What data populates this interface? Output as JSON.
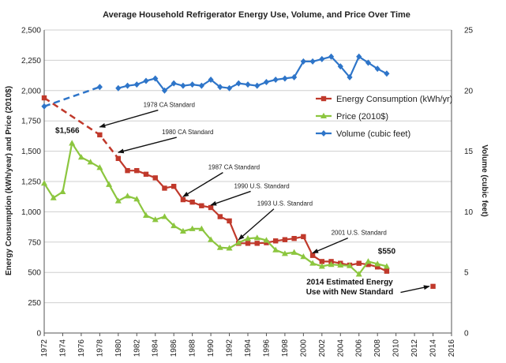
{
  "chart_data": {
    "type": "line",
    "title": "Average Household Refrigerator Energy Use, Volume, and Price Over Time",
    "ylabel": "Energy Consumption (kWh/year) and Price (2010$)",
    "y2label": "Volume (cubic feet)",
    "xlabel": "",
    "xlim": [
      1972,
      2016
    ],
    "ylim": [
      0,
      2500
    ],
    "y2lim": [
      0,
      25
    ],
    "x_ticks": [
      "1972",
      "1974",
      "1976",
      "1978",
      "1980",
      "1982",
      "1984",
      "1986",
      "1988",
      "1990",
      "1992",
      "1994",
      "1996",
      "1998",
      "2000",
      "2002",
      "2004",
      "2006",
      "2008",
      "2010",
      "2012",
      "2014",
      "2016"
    ],
    "y_ticks": [
      "0",
      "250",
      "500",
      "750",
      "1,000",
      "1,250",
      "1,500",
      "1,750",
      "2,000",
      "2,250",
      "2,500"
    ],
    "y2_ticks": [
      "0",
      "5",
      "10",
      "15",
      "20",
      "25"
    ],
    "grid": true,
    "legend_position": "right",
    "series": [
      {
        "name": "Energy Consumption (kWh/yr)",
        "axis": "left",
        "color": "#c0392b",
        "marker": "square",
        "dashed_points": [
          [
            1972,
            1940
          ],
          [
            1978,
            1635
          ],
          [
            1980,
            1440
          ]
        ],
        "solid_points": [
          [
            1980,
            1440
          ],
          [
            1981,
            1340
          ],
          [
            1982,
            1340
          ],
          [
            1983,
            1310
          ],
          [
            1984,
            1280
          ],
          [
            1985,
            1195
          ],
          [
            1986,
            1210
          ],
          [
            1987,
            1100
          ],
          [
            1988,
            1080
          ],
          [
            1989,
            1050
          ],
          [
            1990,
            1035
          ],
          [
            1991,
            960
          ],
          [
            1992,
            925
          ],
          [
            1993,
            740
          ],
          [
            1994,
            740
          ],
          [
            1995,
            740
          ],
          [
            1996,
            745
          ],
          [
            1997,
            760
          ],
          [
            1998,
            770
          ],
          [
            1999,
            780
          ],
          [
            2000,
            795
          ],
          [
            2001,
            640
          ],
          [
            2002,
            590
          ],
          [
            2003,
            590
          ],
          [
            2004,
            575
          ],
          [
            2005,
            560
          ],
          [
            2006,
            575
          ],
          [
            2007,
            565
          ],
          [
            2008,
            545
          ],
          [
            2009,
            510
          ]
        ],
        "extra_points": [
          [
            2014,
            385
          ]
        ]
      },
      {
        "name": "Price (2010$)",
        "axis": "left",
        "color": "#8cc63f",
        "marker": "triangle",
        "points": [
          [
            1972,
            1235
          ],
          [
            1973,
            1115
          ],
          [
            1974,
            1165
          ],
          [
            1975,
            1566
          ],
          [
            1976,
            1450
          ],
          [
            1977,
            1410
          ],
          [
            1978,
            1365
          ],
          [
            1979,
            1225
          ],
          [
            1980,
            1090
          ],
          [
            1981,
            1130
          ],
          [
            1982,
            1105
          ],
          [
            1983,
            970
          ],
          [
            1984,
            935
          ],
          [
            1985,
            960
          ],
          [
            1986,
            885
          ],
          [
            1987,
            840
          ],
          [
            1988,
            860
          ],
          [
            1989,
            860
          ],
          [
            1990,
            770
          ],
          [
            1991,
            705
          ],
          [
            1992,
            700
          ],
          [
            1993,
            745
          ],
          [
            1994,
            780
          ],
          [
            1995,
            785
          ],
          [
            1996,
            765
          ],
          [
            1997,
            685
          ],
          [
            1998,
            655
          ],
          [
            1999,
            665
          ],
          [
            2000,
            630
          ],
          [
            2001,
            575
          ],
          [
            2002,
            550
          ],
          [
            2003,
            565
          ],
          [
            2004,
            560
          ],
          [
            2005,
            555
          ],
          [
            2006,
            485
          ],
          [
            2007,
            590
          ],
          [
            2008,
            570
          ],
          [
            2009,
            550
          ]
        ]
      },
      {
        "name": "Volume (cubic feet)",
        "axis": "right",
        "color": "#2e75c9",
        "marker": "diamond",
        "dashed_points": [
          [
            1972,
            18.7
          ],
          [
            1978,
            20.3
          ]
        ],
        "solid_points": [
          [
            1980,
            20.2
          ],
          [
            1981,
            20.4
          ],
          [
            1982,
            20.5
          ],
          [
            1983,
            20.8
          ],
          [
            1984,
            21.0
          ],
          [
            1985,
            20.0
          ],
          [
            1986,
            20.6
          ],
          [
            1987,
            20.4
          ],
          [
            1988,
            20.5
          ],
          [
            1989,
            20.4
          ],
          [
            1990,
            20.9
          ],
          [
            1991,
            20.3
          ],
          [
            1992,
            20.2
          ],
          [
            1993,
            20.6
          ],
          [
            1994,
            20.5
          ],
          [
            1995,
            20.4
          ],
          [
            1996,
            20.7
          ],
          [
            1997,
            20.9
          ],
          [
            1998,
            21.0
          ],
          [
            1999,
            21.1
          ],
          [
            2000,
            22.4
          ],
          [
            2001,
            22.4
          ],
          [
            2002,
            22.6
          ],
          [
            2003,
            22.8
          ],
          [
            2004,
            22.0
          ],
          [
            2005,
            21.1
          ],
          [
            2006,
            22.8
          ],
          [
            2007,
            22.3
          ],
          [
            2008,
            21.8
          ],
          [
            2009,
            21.4
          ]
        ]
      }
    ],
    "annotations": [
      {
        "text": "1978 CA Standard",
        "x": 1985.5,
        "y": 1865,
        "target": [
          1978,
          1700
        ],
        "style": "normal"
      },
      {
        "text": "1980 CA Standard",
        "x": 1987.5,
        "y": 1640,
        "target": [
          1980,
          1490
        ],
        "style": "normal"
      },
      {
        "text": "1987 CA Standard",
        "x": 1992.5,
        "y": 1350,
        "target": [
          1987,
          1125
        ],
        "style": "normal"
      },
      {
        "text": "1990 U.S. Standard",
        "x": 1995.5,
        "y": 1195,
        "target": [
          1990,
          1055
        ],
        "style": "normal"
      },
      {
        "text": "1993 U.S. Standard",
        "x": 1998,
        "y": 1050,
        "target": [
          1993,
          770
        ],
        "style": "normal"
      },
      {
        "text": "2001 U.S. Standard",
        "x": 2006,
        "y": 810,
        "target": [
          2001,
          660
        ],
        "style": "normal"
      },
      {
        "text": "$1,566",
        "x": 1974.5,
        "y": 1650,
        "target": null,
        "style": "bold"
      },
      {
        "text": "$550",
        "x": 2009,
        "y": 655,
        "target": null,
        "style": "bold"
      },
      {
        "text": "2014 Estimated Energy",
        "x": 2005,
        "y": 402,
        "target": null,
        "style": "bold"
      },
      {
        "text": "Use with New Standard",
        "x": 2005,
        "y": 320,
        "target": [
          2013.6,
          385
        ],
        "style": "bold",
        "arrow_from": [
          2010.5,
          335
        ]
      }
    ]
  }
}
